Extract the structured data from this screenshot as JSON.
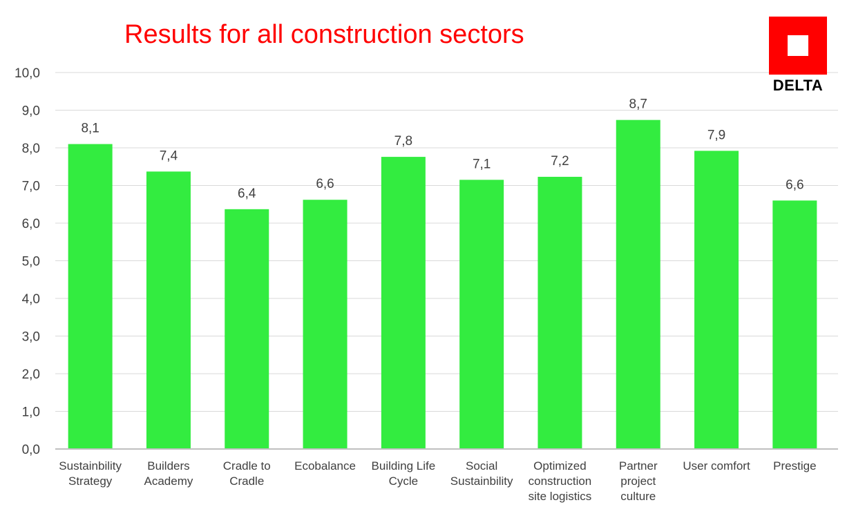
{
  "logo": {
    "text": "DELTA",
    "color": "#ff0000"
  },
  "chart_data": {
    "type": "bar",
    "title": "Results for all construction sectors",
    "title_color": "#ff0000",
    "bar_color": "#33ec40",
    "categories": [
      "Sustainbility Strategy",
      "Builders Academy",
      "Cradle to Cradle",
      "Ecobalance",
      "Building Life Cycle",
      "Social Sustainbility",
      "Optimized construction site logistics",
      "Partner project culture",
      "User comfort",
      "Prestige"
    ],
    "category_label_lines": [
      [
        "Sustainbility",
        "Strategy"
      ],
      [
        "Builders",
        "Academy"
      ],
      [
        "Cradle to",
        "Cradle"
      ],
      [
        "Ecobalance"
      ],
      [
        "Building Life",
        "Cycle"
      ],
      [
        "Social",
        "Sustainbility"
      ],
      [
        "Optimized",
        "construction",
        "site logistics"
      ],
      [
        "Partner",
        "project",
        "culture"
      ],
      [
        "User comfort"
      ],
      [
        "Prestige"
      ]
    ],
    "values": [
      8.1,
      7.37,
      6.37,
      6.62,
      7.76,
      7.15,
      7.23,
      8.74,
      7.92,
      6.6
    ],
    "data_labels": [
      "8,1",
      "7,4",
      "6,4",
      "6,6",
      "7,8",
      "7,1",
      "7,2",
      "8,7",
      "7,9",
      "6,6"
    ],
    "ylim": [
      0,
      10
    ],
    "yticks": [
      "0,0",
      "1,0",
      "2,0",
      "3,0",
      "4,0",
      "5,0",
      "6,0",
      "7,0",
      "8,0",
      "9,0",
      "10,0"
    ],
    "xlabel": "",
    "ylabel": "",
    "grid": true,
    "legend": "none"
  }
}
